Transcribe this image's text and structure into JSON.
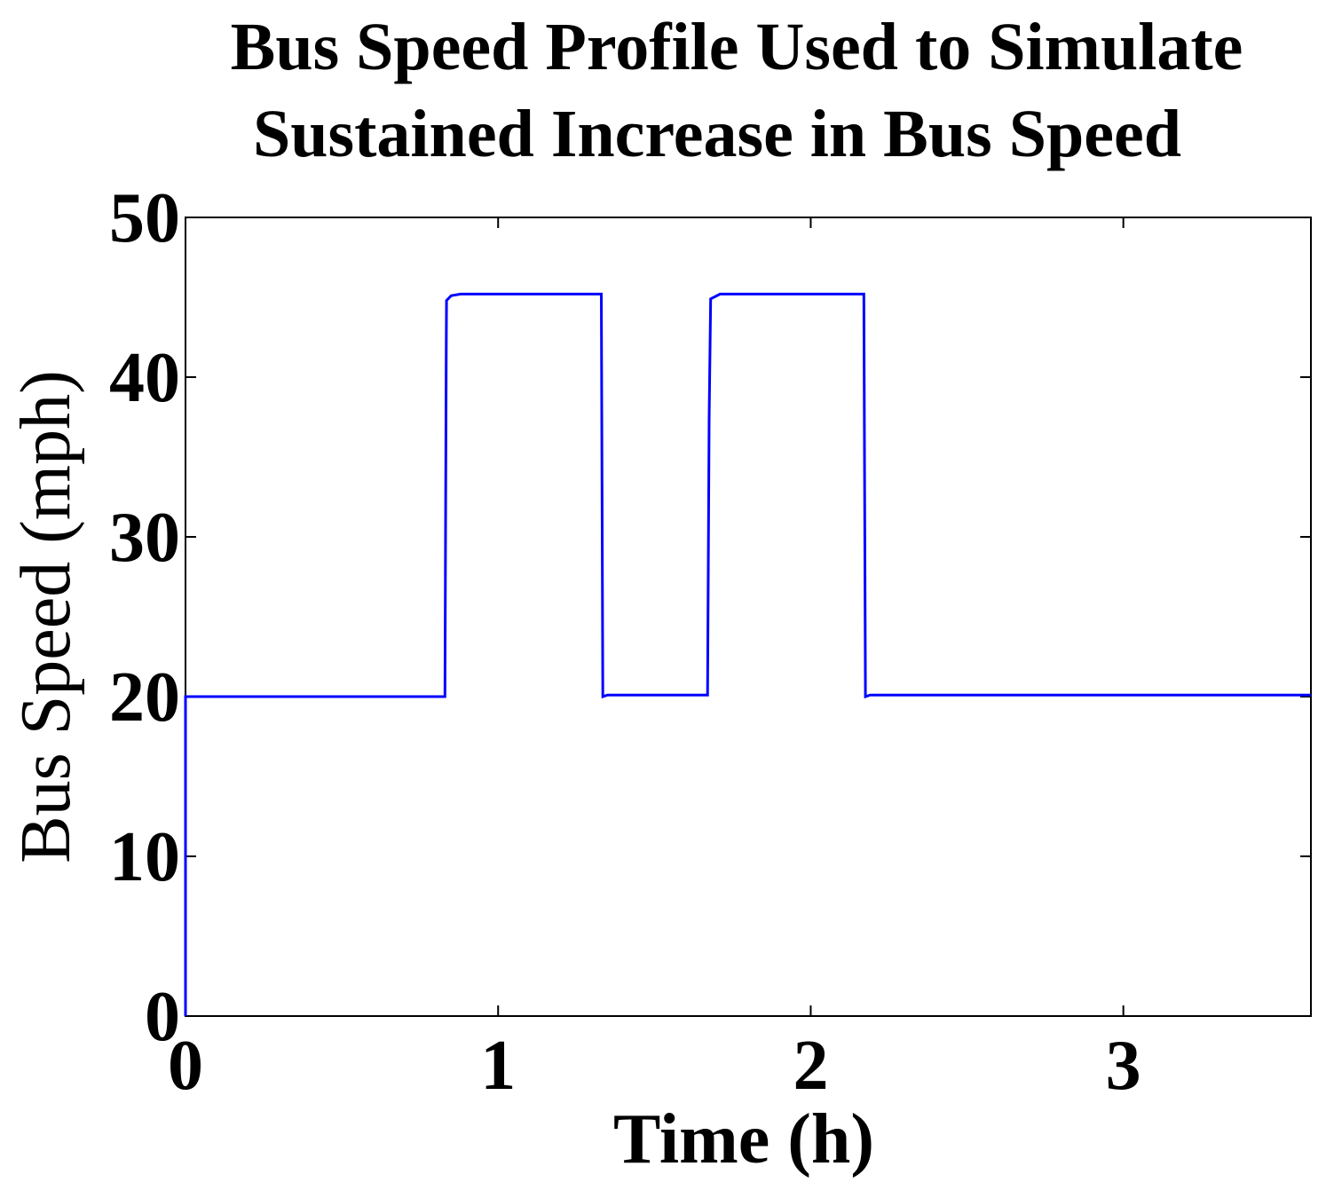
{
  "chart_data": {
    "type": "line",
    "title_lines": [
      "Bus Speed Profile Used to Simulate",
      "Sustained Increase in Bus Speed"
    ],
    "xlabel": "Time (h)",
    "ylabel": "Bus Speed (mph)",
    "xlim": [
      0,
      3.6
    ],
    "ylim": [
      0,
      50
    ],
    "xticks": [
      0,
      1,
      2,
      3
    ],
    "yticks": [
      0,
      10,
      20,
      30,
      40,
      50
    ],
    "grid": false,
    "colors": {
      "line": "#0000ff",
      "axes": "#000000",
      "background": "#ffffff"
    },
    "series": [
      {
        "x": [
          0,
          0,
          0.83,
          0.834,
          0.835,
          0.85,
          0.88,
          1.33,
          1.335,
          1.35,
          1.67,
          1.675,
          1.68,
          1.71,
          2.17,
          2.175,
          2.19,
          3.6
        ],
        "y": [
          0,
          20,
          20,
          42,
          44.8,
          45.1,
          45.2,
          45.2,
          20,
          20.1,
          20.1,
          37.5,
          44.9,
          45.2,
          45.2,
          20,
          20.1,
          20.1
        ]
      }
    ]
  }
}
